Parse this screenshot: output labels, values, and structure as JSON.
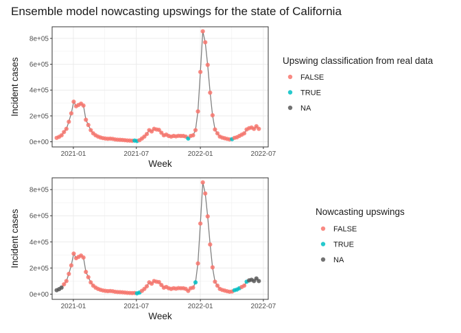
{
  "title": "Ensemble model nowcasting upswings for the state of California",
  "colors": {
    "FALSE": "#F8766D",
    "TRUE": "#00BFC4",
    "NA": "#595959",
    "line": "#808080"
  },
  "chart_data": [
    {
      "type": "line",
      "xlabel": "Week",
      "ylabel": "Incident cases",
      "xlim": [
        "2020-11-01",
        "2022-07-15"
      ],
      "ylim": [
        -40000,
        890000
      ],
      "xticks": [
        "2021-01-01",
        "2021-07-01",
        "2022-01-01",
        "2022-07-01"
      ],
      "xtick_labels": [
        "2021-01",
        "2021-07",
        "2022-01",
        "2022-07"
      ],
      "yticks": [
        0,
        200000,
        400000,
        600000,
        800000
      ],
      "ytick_labels": [
        "0e+00",
        "2e+05",
        "4e+05",
        "6e+05",
        "8e+05"
      ],
      "grid": true,
      "legend_title": "Upswing classification from real data",
      "legend": [
        "FALSE",
        "TRUE",
        "NA"
      ],
      "points": [
        {
          "x": "2020-11-14",
          "y": 30000,
          "class": "FALSE"
        },
        {
          "x": "2020-11-21",
          "y": 38000,
          "class": "FALSE"
        },
        {
          "x": "2020-11-28",
          "y": 50000,
          "class": "FALSE"
        },
        {
          "x": "2020-12-05",
          "y": 75000,
          "class": "FALSE"
        },
        {
          "x": "2020-12-12",
          "y": 100000,
          "class": "FALSE"
        },
        {
          "x": "2020-12-19",
          "y": 155000,
          "class": "FALSE"
        },
        {
          "x": "2020-12-26",
          "y": 220000,
          "class": "FALSE"
        },
        {
          "x": "2021-01-02",
          "y": 310000,
          "class": "FALSE"
        },
        {
          "x": "2021-01-09",
          "y": 275000,
          "class": "FALSE"
        },
        {
          "x": "2021-01-16",
          "y": 285000,
          "class": "FALSE"
        },
        {
          "x": "2021-01-23",
          "y": 295000,
          "class": "FALSE"
        },
        {
          "x": "2021-01-30",
          "y": 280000,
          "class": "FALSE"
        },
        {
          "x": "2021-02-06",
          "y": 170000,
          "class": "FALSE"
        },
        {
          "x": "2021-02-13",
          "y": 130000,
          "class": "FALSE"
        },
        {
          "x": "2021-02-20",
          "y": 90000,
          "class": "FALSE"
        },
        {
          "x": "2021-02-27",
          "y": 65000,
          "class": "FALSE"
        },
        {
          "x": "2021-03-06",
          "y": 50000,
          "class": "FALSE"
        },
        {
          "x": "2021-03-13",
          "y": 40000,
          "class": "FALSE"
        },
        {
          "x": "2021-03-20",
          "y": 33000,
          "class": "FALSE"
        },
        {
          "x": "2021-03-27",
          "y": 28000,
          "class": "FALSE"
        },
        {
          "x": "2021-04-03",
          "y": 25000,
          "class": "FALSE"
        },
        {
          "x": "2021-04-10",
          "y": 23000,
          "class": "FALSE"
        },
        {
          "x": "2021-04-17",
          "y": 24000,
          "class": "FALSE"
        },
        {
          "x": "2021-04-24",
          "y": 22000,
          "class": "FALSE"
        },
        {
          "x": "2021-05-01",
          "y": 18000,
          "class": "FALSE"
        },
        {
          "x": "2021-05-08",
          "y": 16000,
          "class": "FALSE"
        },
        {
          "x": "2021-05-15",
          "y": 15000,
          "class": "FALSE"
        },
        {
          "x": "2021-05-22",
          "y": 14000,
          "class": "FALSE"
        },
        {
          "x": "2021-05-29",
          "y": 12000,
          "class": "FALSE"
        },
        {
          "x": "2021-06-05",
          "y": 10000,
          "class": "FALSE"
        },
        {
          "x": "2021-06-12",
          "y": 9000,
          "class": "FALSE"
        },
        {
          "x": "2021-06-19",
          "y": 8000,
          "class": "FALSE"
        },
        {
          "x": "2021-06-26",
          "y": 9000,
          "class": "TRUE"
        },
        {
          "x": "2021-07-03",
          "y": 6000,
          "class": "TRUE"
        },
        {
          "x": "2021-07-10",
          "y": 12000,
          "class": "FALSE"
        },
        {
          "x": "2021-07-17",
          "y": 25000,
          "class": "FALSE"
        },
        {
          "x": "2021-07-24",
          "y": 40000,
          "class": "FALSE"
        },
        {
          "x": "2021-07-31",
          "y": 60000,
          "class": "FALSE"
        },
        {
          "x": "2021-08-07",
          "y": 90000,
          "class": "FALSE"
        },
        {
          "x": "2021-08-14",
          "y": 80000,
          "class": "FALSE"
        },
        {
          "x": "2021-08-21",
          "y": 100000,
          "class": "FALSE"
        },
        {
          "x": "2021-08-28",
          "y": 95000,
          "class": "FALSE"
        },
        {
          "x": "2021-09-04",
          "y": 92000,
          "class": "FALSE"
        },
        {
          "x": "2021-09-11",
          "y": 70000,
          "class": "FALSE"
        },
        {
          "x": "2021-09-18",
          "y": 50000,
          "class": "FALSE"
        },
        {
          "x": "2021-09-25",
          "y": 55000,
          "class": "FALSE"
        },
        {
          "x": "2021-10-02",
          "y": 45000,
          "class": "FALSE"
        },
        {
          "x": "2021-10-09",
          "y": 40000,
          "class": "FALSE"
        },
        {
          "x": "2021-10-16",
          "y": 45000,
          "class": "FALSE"
        },
        {
          "x": "2021-10-23",
          "y": 42000,
          "class": "FALSE"
        },
        {
          "x": "2021-10-30",
          "y": 46000,
          "class": "FALSE"
        },
        {
          "x": "2021-11-06",
          "y": 45000,
          "class": "FALSE"
        },
        {
          "x": "2021-11-13",
          "y": 45000,
          "class": "FALSE"
        },
        {
          "x": "2021-11-20",
          "y": 40000,
          "class": "FALSE"
        },
        {
          "x": "2021-11-27",
          "y": 25000,
          "class": "TRUE"
        },
        {
          "x": "2021-12-04",
          "y": 45000,
          "class": "FALSE"
        },
        {
          "x": "2021-12-11",
          "y": 50000,
          "class": "FALSE"
        },
        {
          "x": "2021-12-18",
          "y": 90000,
          "class": "FALSE"
        },
        {
          "x": "2021-12-25",
          "y": 235000,
          "class": "FALSE"
        },
        {
          "x": "2022-01-01",
          "y": 540000,
          "class": "FALSE"
        },
        {
          "x": "2022-01-08",
          "y": 855000,
          "class": "FALSE"
        },
        {
          "x": "2022-01-15",
          "y": 770000,
          "class": "FALSE"
        },
        {
          "x": "2022-01-22",
          "y": 595000,
          "class": "FALSE"
        },
        {
          "x": "2022-01-29",
          "y": 380000,
          "class": "FALSE"
        },
        {
          "x": "2022-02-05",
          "y": 205000,
          "class": "FALSE"
        },
        {
          "x": "2022-02-12",
          "y": 95000,
          "class": "FALSE"
        },
        {
          "x": "2022-02-19",
          "y": 65000,
          "class": "FALSE"
        },
        {
          "x": "2022-02-26",
          "y": 40000,
          "class": "FALSE"
        },
        {
          "x": "2022-03-05",
          "y": 32000,
          "class": "FALSE"
        },
        {
          "x": "2022-03-12",
          "y": 27000,
          "class": "FALSE"
        },
        {
          "x": "2022-03-19",
          "y": 22000,
          "class": "FALSE"
        },
        {
          "x": "2022-03-26",
          "y": 18000,
          "class": "FALSE"
        },
        {
          "x": "2022-04-02",
          "y": 20000,
          "class": "TRUE"
        },
        {
          "x": "2022-04-09",
          "y": 30000,
          "class": "FALSE"
        },
        {
          "x": "2022-04-16",
          "y": 35000,
          "class": "FALSE"
        },
        {
          "x": "2022-04-23",
          "y": 45000,
          "class": "FALSE"
        },
        {
          "x": "2022-04-30",
          "y": 55000,
          "class": "FALSE"
        },
        {
          "x": "2022-05-07",
          "y": 65000,
          "class": "FALSE"
        },
        {
          "x": "2022-05-14",
          "y": 95000,
          "class": "FALSE"
        },
        {
          "x": "2022-05-21",
          "y": 105000,
          "class": "FALSE"
        },
        {
          "x": "2022-05-28",
          "y": 110000,
          "class": "FALSE"
        },
        {
          "x": "2022-06-04",
          "y": 100000,
          "class": "FALSE"
        },
        {
          "x": "2022-06-11",
          "y": 120000,
          "class": "FALSE"
        },
        {
          "x": "2022-06-18",
          "y": 100000,
          "class": "FALSE"
        }
      ]
    },
    {
      "type": "line",
      "xlabel": "Week",
      "ylabel": "Incident cases",
      "xlim": [
        "2020-11-01",
        "2022-07-15"
      ],
      "ylim": [
        -40000,
        890000
      ],
      "xticks": [
        "2021-01-01",
        "2021-07-01",
        "2022-01-01",
        "2022-07-01"
      ],
      "xtick_labels": [
        "2021-01",
        "2021-07",
        "2022-01",
        "2022-07"
      ],
      "yticks": [
        0,
        200000,
        400000,
        600000,
        800000
      ],
      "ytick_labels": [
        "0e+00",
        "2e+05",
        "4e+05",
        "6e+05",
        "8e+05"
      ],
      "grid": true,
      "legend_title": "Nowcasting upswings",
      "legend": [
        "FALSE",
        "TRUE",
        "NA"
      ],
      "points": [
        {
          "x": "2020-11-14",
          "y": 30000,
          "class": "NA"
        },
        {
          "x": "2020-11-21",
          "y": 38000,
          "class": "NA"
        },
        {
          "x": "2020-11-28",
          "y": 50000,
          "class": "NA"
        },
        {
          "x": "2020-12-05",
          "y": 75000,
          "class": "FALSE"
        },
        {
          "x": "2020-12-12",
          "y": 100000,
          "class": "FALSE"
        },
        {
          "x": "2020-12-19",
          "y": 155000,
          "class": "FALSE"
        },
        {
          "x": "2020-12-26",
          "y": 220000,
          "class": "FALSE"
        },
        {
          "x": "2021-01-02",
          "y": 310000,
          "class": "FALSE"
        },
        {
          "x": "2021-01-09",
          "y": 275000,
          "class": "FALSE"
        },
        {
          "x": "2021-01-16",
          "y": 285000,
          "class": "FALSE"
        },
        {
          "x": "2021-01-23",
          "y": 295000,
          "class": "FALSE"
        },
        {
          "x": "2021-01-30",
          "y": 280000,
          "class": "FALSE"
        },
        {
          "x": "2021-02-06",
          "y": 170000,
          "class": "FALSE"
        },
        {
          "x": "2021-02-13",
          "y": 130000,
          "class": "FALSE"
        },
        {
          "x": "2021-02-20",
          "y": 90000,
          "class": "FALSE"
        },
        {
          "x": "2021-02-27",
          "y": 65000,
          "class": "FALSE"
        },
        {
          "x": "2021-03-06",
          "y": 50000,
          "class": "FALSE"
        },
        {
          "x": "2021-03-13",
          "y": 40000,
          "class": "FALSE"
        },
        {
          "x": "2021-03-20",
          "y": 33000,
          "class": "FALSE"
        },
        {
          "x": "2021-03-27",
          "y": 28000,
          "class": "FALSE"
        },
        {
          "x": "2021-04-03",
          "y": 25000,
          "class": "FALSE"
        },
        {
          "x": "2021-04-10",
          "y": 23000,
          "class": "FALSE"
        },
        {
          "x": "2021-04-17",
          "y": 24000,
          "class": "FALSE"
        },
        {
          "x": "2021-04-24",
          "y": 22000,
          "class": "FALSE"
        },
        {
          "x": "2021-05-01",
          "y": 18000,
          "class": "FALSE"
        },
        {
          "x": "2021-05-08",
          "y": 16000,
          "class": "FALSE"
        },
        {
          "x": "2021-05-15",
          "y": 15000,
          "class": "FALSE"
        },
        {
          "x": "2021-05-22",
          "y": 14000,
          "class": "FALSE"
        },
        {
          "x": "2021-05-29",
          "y": 12000,
          "class": "FALSE"
        },
        {
          "x": "2021-06-05",
          "y": 10000,
          "class": "FALSE"
        },
        {
          "x": "2021-06-12",
          "y": 9000,
          "class": "FALSE"
        },
        {
          "x": "2021-06-19",
          "y": 8000,
          "class": "FALSE"
        },
        {
          "x": "2021-06-26",
          "y": 9000,
          "class": "FALSE"
        },
        {
          "x": "2021-07-03",
          "y": 6000,
          "class": "TRUE"
        },
        {
          "x": "2021-07-10",
          "y": 12000,
          "class": "TRUE"
        },
        {
          "x": "2021-07-17",
          "y": 25000,
          "class": "FALSE"
        },
        {
          "x": "2021-07-24",
          "y": 40000,
          "class": "FALSE"
        },
        {
          "x": "2021-07-31",
          "y": 60000,
          "class": "FALSE"
        },
        {
          "x": "2021-08-07",
          "y": 90000,
          "class": "FALSE"
        },
        {
          "x": "2021-08-14",
          "y": 80000,
          "class": "FALSE"
        },
        {
          "x": "2021-08-21",
          "y": 100000,
          "class": "FALSE"
        },
        {
          "x": "2021-08-28",
          "y": 95000,
          "class": "FALSE"
        },
        {
          "x": "2021-09-04",
          "y": 92000,
          "class": "FALSE"
        },
        {
          "x": "2021-09-11",
          "y": 70000,
          "class": "FALSE"
        },
        {
          "x": "2021-09-18",
          "y": 50000,
          "class": "FALSE"
        },
        {
          "x": "2021-09-25",
          "y": 55000,
          "class": "FALSE"
        },
        {
          "x": "2021-10-02",
          "y": 45000,
          "class": "FALSE"
        },
        {
          "x": "2021-10-09",
          "y": 40000,
          "class": "FALSE"
        },
        {
          "x": "2021-10-16",
          "y": 45000,
          "class": "FALSE"
        },
        {
          "x": "2021-10-23",
          "y": 42000,
          "class": "FALSE"
        },
        {
          "x": "2021-10-30",
          "y": 46000,
          "class": "FALSE"
        },
        {
          "x": "2021-11-06",
          "y": 45000,
          "class": "FALSE"
        },
        {
          "x": "2021-11-13",
          "y": 45000,
          "class": "FALSE"
        },
        {
          "x": "2021-11-20",
          "y": 40000,
          "class": "FALSE"
        },
        {
          "x": "2021-11-27",
          "y": 25000,
          "class": "FALSE"
        },
        {
          "x": "2021-12-04",
          "y": 45000,
          "class": "FALSE"
        },
        {
          "x": "2021-12-11",
          "y": 50000,
          "class": "FALSE"
        },
        {
          "x": "2021-12-18",
          "y": 90000,
          "class": "TRUE"
        },
        {
          "x": "2021-12-25",
          "y": 235000,
          "class": "FALSE"
        },
        {
          "x": "2022-01-01",
          "y": 540000,
          "class": "FALSE"
        },
        {
          "x": "2022-01-08",
          "y": 855000,
          "class": "FALSE"
        },
        {
          "x": "2022-01-15",
          "y": 770000,
          "class": "FALSE"
        },
        {
          "x": "2022-01-22",
          "y": 595000,
          "class": "FALSE"
        },
        {
          "x": "2022-01-29",
          "y": 380000,
          "class": "FALSE"
        },
        {
          "x": "2022-02-05",
          "y": 205000,
          "class": "FALSE"
        },
        {
          "x": "2022-02-12",
          "y": 95000,
          "class": "FALSE"
        },
        {
          "x": "2022-02-19",
          "y": 65000,
          "class": "FALSE"
        },
        {
          "x": "2022-02-26",
          "y": 40000,
          "class": "FALSE"
        },
        {
          "x": "2022-03-05",
          "y": 32000,
          "class": "FALSE"
        },
        {
          "x": "2022-03-12",
          "y": 27000,
          "class": "FALSE"
        },
        {
          "x": "2022-03-19",
          "y": 22000,
          "class": "FALSE"
        },
        {
          "x": "2022-03-26",
          "y": 18000,
          "class": "FALSE"
        },
        {
          "x": "2022-04-02",
          "y": 20000,
          "class": "FALSE"
        },
        {
          "x": "2022-04-09",
          "y": 30000,
          "class": "TRUE"
        },
        {
          "x": "2022-04-16",
          "y": 35000,
          "class": "TRUE"
        },
        {
          "x": "2022-04-23",
          "y": 45000,
          "class": "TRUE"
        },
        {
          "x": "2022-04-30",
          "y": 55000,
          "class": "FALSE"
        },
        {
          "x": "2022-05-07",
          "y": 65000,
          "class": "FALSE"
        },
        {
          "x": "2022-05-14",
          "y": 95000,
          "class": "TRUE"
        },
        {
          "x": "2022-05-21",
          "y": 105000,
          "class": "NA"
        },
        {
          "x": "2022-05-28",
          "y": 110000,
          "class": "NA"
        },
        {
          "x": "2022-06-04",
          "y": 100000,
          "class": "NA"
        },
        {
          "x": "2022-06-11",
          "y": 120000,
          "class": "NA"
        },
        {
          "x": "2022-06-18",
          "y": 100000,
          "class": "NA"
        }
      ]
    }
  ]
}
